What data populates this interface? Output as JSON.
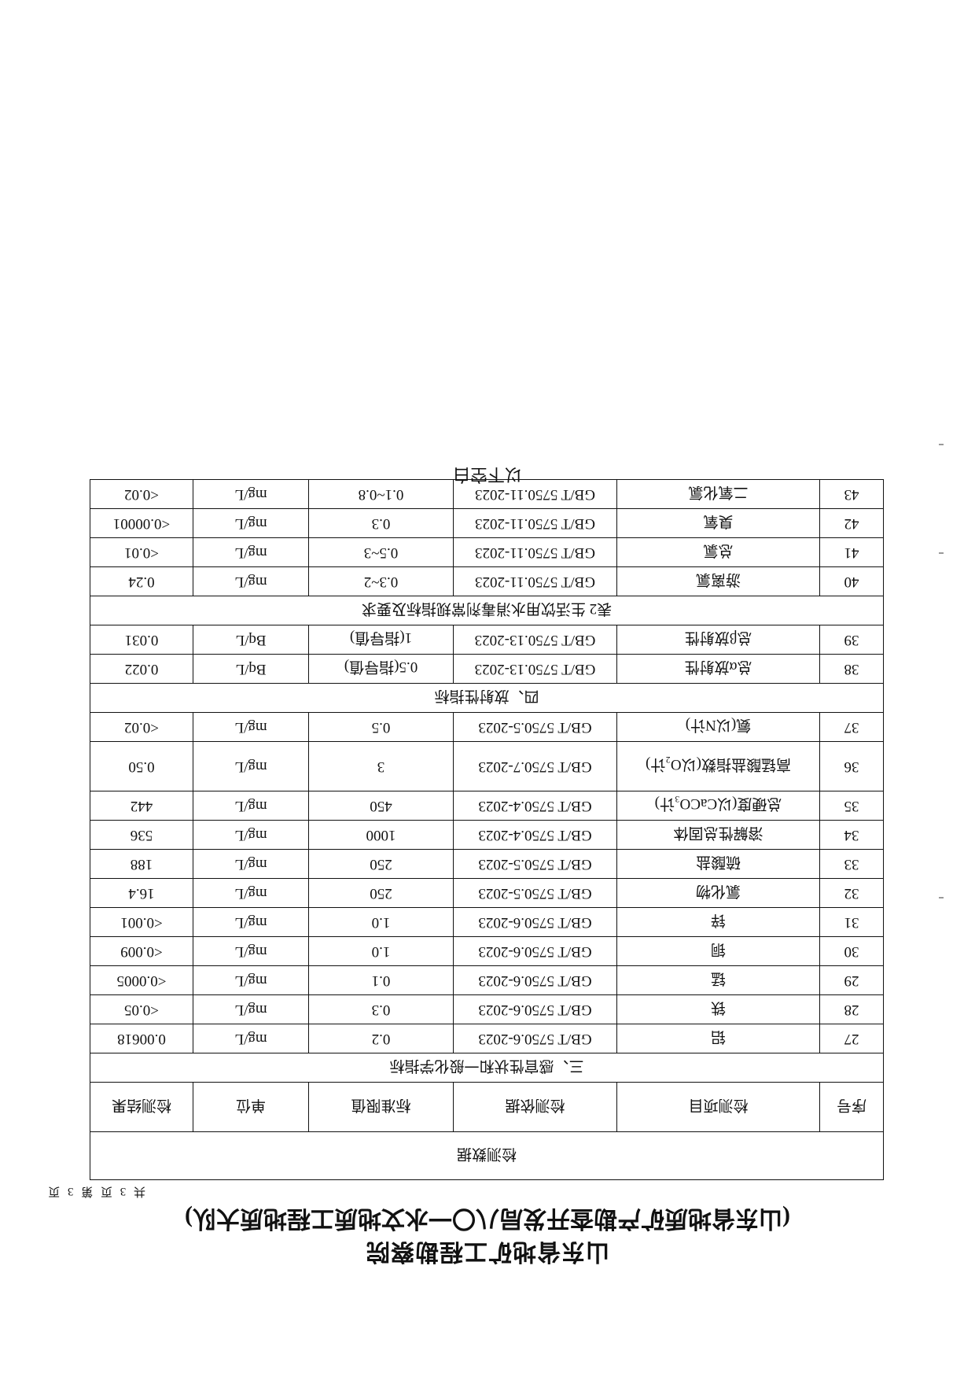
{
  "header": {
    "org_title": "山东省地矿工程勘察院",
    "org_subtitle": "(山东省地质矿产勘查开发局八〇一水文地质工程地质大队)",
    "page_note": "共 3 页  第 3 页"
  },
  "table": {
    "caption": "检测数据",
    "columns": [
      "序号",
      "检测项目",
      "检测依据",
      "标准限值",
      "单位",
      "检测结果"
    ],
    "sections": [
      {
        "title": "三、感官性状和一般化学指标",
        "rows": [
          [
            "27",
            "铝",
            "GB/T 5750.6-2023",
            "0.2",
            "mg/L",
            "0.00618"
          ],
          [
            "28",
            "铁",
            "GB/T 5750.6-2023",
            "0.3",
            "mg/L",
            "<0.05"
          ],
          [
            "29",
            "锰",
            "GB/T 5750.6-2023",
            "0.1",
            "mg/L",
            "<0.0005"
          ],
          [
            "30",
            "铜",
            "GB/T 5750.6-2023",
            "1.0",
            "mg/L",
            "<0.009"
          ],
          [
            "31",
            "锌",
            "GB/T 5750.6-2023",
            "1.0",
            "mg/L",
            "<0.001"
          ],
          [
            "32",
            "氯化物",
            "GB/T 5750.5-2023",
            "250",
            "mg/L",
            "16.4"
          ],
          [
            "33",
            "硫酸盐",
            "GB/T 5750.5-2023",
            "250",
            "mg/L",
            "188"
          ],
          [
            "34",
            "溶解性总固体",
            "GB/T 5750.4-2023",
            "1000",
            "mg/L",
            "536"
          ],
          [
            "35",
            "总硬度(以CaCO₃计)",
            "GB/T 5750.4-2023",
            "450",
            "mg/L",
            "442"
          ],
          [
            "36",
            "高锰酸盐指数(以O₂计)",
            "GB/T 5750.7-2023",
            "3",
            "mg/L",
            "0.50"
          ],
          [
            "37",
            "氨(以N计)",
            "GB/T 5750.5-2023",
            "0.5",
            "mg/L",
            "<0.02"
          ]
        ]
      },
      {
        "title": "四、放射性指标",
        "rows": [
          [
            "38",
            "总α放射性",
            "GB/T 5750.13-2023",
            "0.5(指导值)",
            "Bq/L",
            "0.022"
          ],
          [
            "39",
            "总β放射性",
            "GB/T 5750.13-2023",
            "1(指导值)",
            "Bq/L",
            "0.031"
          ]
        ]
      },
      {
        "title": "表2  生活饮用水消毒剂常规指标及要求",
        "rows": [
          [
            "40",
            "游离氯",
            "GB/T 5750.11-2023",
            "0.3~2",
            "mg/L",
            "0.24"
          ],
          [
            "41",
            "总氯",
            "GB/T 5750.11-2023",
            "0.5~3",
            "mg/L",
            "<0.01"
          ],
          [
            "42",
            "臭氧",
            "GB/T 5750.11-2023",
            "0.3",
            "mg/L",
            "<0.00001"
          ],
          [
            "43",
            "二氧化氯",
            "GB/T 5750.11-2023",
            "0.1~0.8",
            "mg/L",
            "<0.02"
          ]
        ]
      }
    ],
    "end_note": "以下空白"
  }
}
